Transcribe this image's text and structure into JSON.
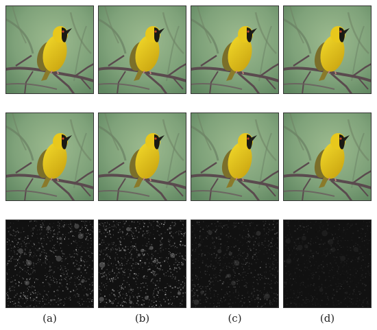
{
  "figure": {
    "rows": [
      {
        "kind": "photo",
        "label": ""
      },
      {
        "kind": "photo",
        "label": ""
      },
      {
        "kind": "difference-map",
        "label": ""
      }
    ],
    "columns": [
      {
        "caption": "(a)"
      },
      {
        "caption": "(b)"
      },
      {
        "caption": "(c)"
      },
      {
        "caption": "(d)"
      }
    ],
    "difference_map_brightness": [
      1.0,
      1.15,
      0.6,
      0.35
    ],
    "colors": {
      "background_green": "#7fa27a",
      "bird_yellow": "#e0c21a",
      "branch": "#5a4a4e",
      "border": "#333333",
      "noise_dark": "#111111"
    }
  }
}
